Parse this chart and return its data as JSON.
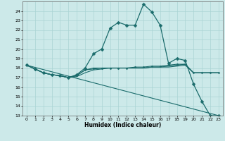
{
  "xlabel": "Humidex (Indice chaleur)",
  "background_color": "#cce9e9",
  "grid_color": "#aad4d4",
  "line_color": "#1a6b6b",
  "xlim": [
    -0.5,
    23.5
  ],
  "ylim": [
    13,
    25
  ],
  "yticks": [
    13,
    14,
    15,
    16,
    17,
    18,
    19,
    20,
    21,
    22,
    23,
    24
  ],
  "xticks": [
    0,
    1,
    2,
    3,
    4,
    5,
    6,
    7,
    8,
    9,
    10,
    11,
    12,
    13,
    14,
    15,
    16,
    17,
    18,
    19,
    20,
    21,
    22,
    23
  ],
  "series": [
    {
      "x": [
        0,
        1,
        2,
        3,
        4,
        5,
        6,
        7,
        8,
        9,
        10,
        11,
        12,
        13,
        14,
        15,
        16,
        17,
        18,
        19,
        20,
        21,
        22,
        23
      ],
      "y": [
        18.3,
        17.9,
        17.5,
        17.3,
        17.2,
        17.0,
        17.3,
        18.0,
        19.5,
        20.0,
        22.2,
        22.8,
        22.5,
        22.5,
        24.7,
        23.9,
        22.5,
        18.5,
        19.0,
        18.8,
        16.3,
        14.5,
        13.0,
        13.0
      ],
      "marker": "D",
      "ms": 2.5,
      "lw": 0.9
    },
    {
      "x": [
        0,
        1,
        2,
        3,
        4,
        5,
        6,
        7,
        8,
        9,
        10,
        11,
        12,
        13,
        14,
        15,
        16,
        17,
        18,
        19,
        20,
        21,
        22,
        23
      ],
      "y": [
        18.3,
        17.9,
        17.5,
        17.3,
        17.2,
        17.0,
        17.2,
        17.8,
        18.0,
        18.0,
        18.0,
        18.0,
        18.0,
        18.1,
        18.1,
        18.2,
        18.2,
        18.3,
        18.4,
        18.4,
        17.5,
        17.5,
        17.5,
        17.5
      ],
      "marker": "D",
      "ms": 1.5,
      "lw": 0.8
    },
    {
      "x": [
        0,
        1,
        2,
        3,
        4,
        5,
        6,
        7,
        8,
        9,
        10,
        11,
        12,
        13,
        14,
        15,
        16,
        17,
        18,
        19,
        20,
        21,
        22,
        23
      ],
      "y": [
        18.3,
        17.9,
        17.5,
        17.3,
        17.2,
        17.0,
        17.2,
        17.8,
        17.9,
        18.0,
        18.0,
        18.0,
        18.0,
        18.0,
        18.0,
        18.1,
        18.1,
        18.2,
        18.3,
        18.4,
        17.5,
        17.5,
        17.5,
        17.5
      ],
      "marker": null,
      "ms": 0,
      "lw": 0.8
    },
    {
      "x": [
        0,
        1,
        2,
        3,
        4,
        5,
        6,
        7,
        8,
        9,
        10,
        11,
        12,
        13,
        14,
        15,
        16,
        17,
        18,
        19,
        20,
        21,
        22,
        23
      ],
      "y": [
        18.3,
        17.9,
        17.5,
        17.3,
        17.2,
        17.0,
        17.1,
        17.5,
        17.8,
        17.9,
        18.0,
        18.0,
        18.0,
        18.0,
        18.0,
        18.1,
        18.1,
        18.1,
        18.2,
        18.3,
        17.5,
        17.5,
        17.5,
        17.5
      ],
      "marker": null,
      "ms": 0,
      "lw": 0.8
    },
    {
      "x": [
        0,
        23
      ],
      "y": [
        18.3,
        13.0
      ],
      "marker": null,
      "ms": 0,
      "lw": 0.8
    }
  ]
}
